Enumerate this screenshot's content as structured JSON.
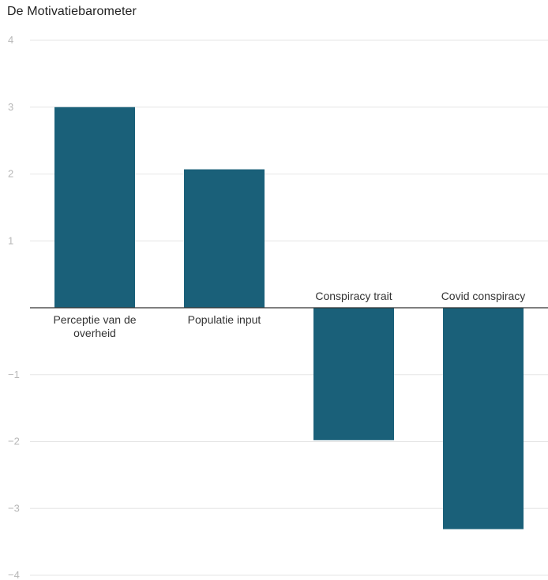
{
  "chart_data": {
    "type": "bar",
    "title": "De Motivatiebarometer",
    "xlabel": "",
    "ylabel": "",
    "categories": [
      "Perceptie van de overheid",
      "Populatie input",
      "Conspiracy trait",
      "Covid conspiracy"
    ],
    "category_label_lines": [
      [
        "Perceptie van de",
        "overheid"
      ],
      [
        "Populatie input"
      ],
      [
        "Conspiracy trait"
      ],
      [
        "Covid conspiracy"
      ]
    ],
    "values": [
      3.0,
      2.07,
      -1.98,
      -3.31
    ],
    "ylim": [
      -4,
      4
    ],
    "yticks": [
      4,
      3,
      2,
      1,
      -1,
      -2,
      -3,
      -4
    ],
    "ytick_labels": [
      "4",
      "3",
      "2",
      "1",
      "−1",
      "−2",
      "−3",
      "−4"
    ],
    "grid": true,
    "legend": "none",
    "colors": {
      "bar": "#1a6079",
      "grid": "#e6e6e6",
      "axis": "#333333",
      "tick_text": "#b8b8b8"
    }
  }
}
